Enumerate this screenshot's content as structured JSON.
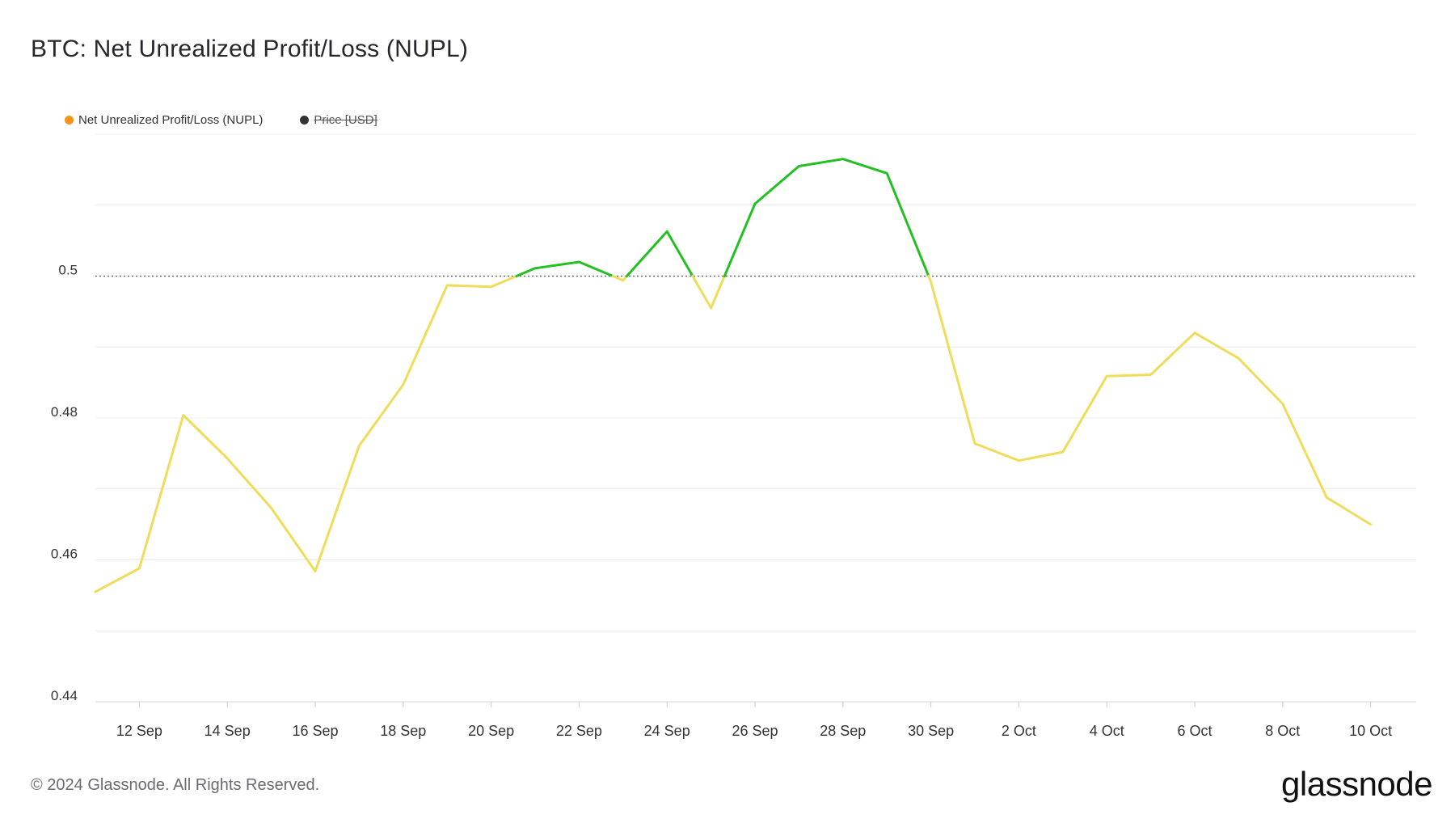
{
  "title": "BTC: Net Unrealized Profit/Loss (NUPL)",
  "legend": [
    {
      "label": "Net Unrealized Profit/Loss (NUPL)",
      "color": "#f7931a",
      "active": true
    },
    {
      "label": "Price [USD]",
      "color": "#333333",
      "active": false
    }
  ],
  "footer": "© 2024 Glassnode. All Rights Reserved.",
  "brand": "glassnode",
  "chart_data": {
    "type": "line",
    "ylim": [
      0.44,
      0.52
    ],
    "yticks": [
      0.44,
      0.46,
      0.48,
      0.5
    ],
    "ytick_labels": [
      "0.44",
      "0.46",
      "0.48",
      "0.5"
    ],
    "xtick_labels": [
      "12 Sep",
      "14 Sep",
      "16 Sep",
      "18 Sep",
      "20 Sep",
      "22 Sep",
      "24 Sep",
      "26 Sep",
      "28 Sep",
      "30 Sep",
      "2 Oct",
      "4 Oct",
      "6 Oct",
      "8 Oct",
      "10 Oct"
    ],
    "threshold": 0.5,
    "color_above": "#22c022",
    "color_below": "#f0dc5a",
    "grid": true,
    "legend_position": "top-left",
    "series": [
      {
        "name": "Net Unrealized Profit/Loss (NUPL)",
        "x": [
          "11 Sep",
          "12 Sep",
          "13 Sep",
          "14 Sep",
          "15 Sep",
          "16 Sep",
          "17 Sep",
          "18 Sep",
          "19 Sep",
          "20 Sep",
          "21 Sep",
          "22 Sep",
          "23 Sep",
          "24 Sep",
          "25 Sep",
          "26 Sep",
          "27 Sep",
          "28 Sep",
          "29 Sep",
          "30 Sep",
          "1 Oct",
          "2 Oct",
          "3 Oct",
          "4 Oct",
          "5 Oct",
          "6 Oct",
          "7 Oct",
          "8 Oct",
          "9 Oct",
          "10 Oct"
        ],
        "values": [
          0.4555,
          0.4588,
          0.4804,
          0.4743,
          0.4673,
          0.4584,
          0.4761,
          0.4847,
          0.4987,
          0.4985,
          0.5011,
          0.502,
          0.4994,
          0.5063,
          0.4955,
          0.5102,
          0.5155,
          0.5165,
          0.5145,
          0.4992,
          0.4764,
          0.474,
          0.4752,
          0.4859,
          0.4861,
          0.492,
          0.4884,
          0.482,
          0.4688,
          0.465
        ]
      }
    ]
  }
}
